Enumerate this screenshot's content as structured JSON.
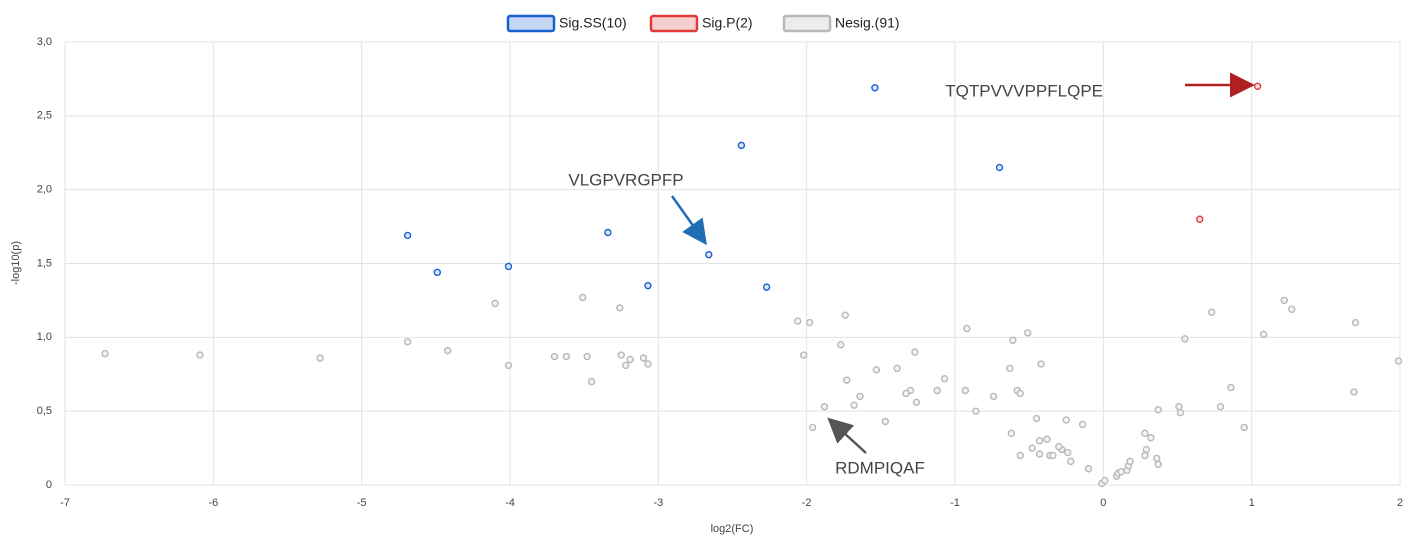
{
  "chart_data": {
    "type": "scatter",
    "x_label": "log2(FC)",
    "y_label": "-log10(p)",
    "xlim": [
      -7,
      2
    ],
    "xticks": [
      -7,
      -6,
      -5,
      -4,
      -3,
      -2,
      -1,
      0,
      1,
      2
    ],
    "ylim": [
      0,
      3
    ],
    "yticks": [
      0,
      {
        "value": 0.5,
        "label": "0,5"
      },
      {
        "value": 1,
        "label": "1,0"
      },
      {
        "value": 1.5,
        "label": "1,5"
      },
      {
        "value": 2,
        "label": "2,0"
      },
      {
        "value": 2.5,
        "label": "2,5"
      },
      {
        "value": 3,
        "label": "3,0"
      }
    ],
    "grid": true,
    "legend": "top",
    "series": [
      {
        "name": "Sig.SS(10)",
        "color": "#1a5fd0",
        "x": [
          -4.69,
          -4.49,
          -4.01,
          -3.34,
          -3.07,
          -2.66,
          -2.44,
          -2.27,
          -1.54,
          -0.7
        ],
        "y": [
          1.69,
          1.44,
          1.48,
          1.71,
          1.35,
          1.56,
          2.3,
          1.34,
          2.69,
          2.15
        ]
      },
      {
        "name": "Sig.P(2)",
        "color": "#e03a3a",
        "x": [
          1.04,
          0.65
        ],
        "y": [
          2.7,
          1.8
        ]
      },
      {
        "name": "Nesig.(91)",
        "color": "#b8b8b8",
        "x": [
          -6.73,
          -6.09,
          -5.28,
          -4.69,
          -4.42,
          -4.1,
          -4.01,
          -3.7,
          -3.62,
          -3.51,
          -3.48,
          -3.45,
          -3.26,
          -3.25,
          -3.22,
          -3.19,
          -3.1,
          -3.07,
          -2.06,
          -2.02,
          -1.98,
          -1.96,
          -1.88,
          -1.77,
          -1.74,
          -1.73,
          -1.68,
          -1.64,
          -1.53,
          -1.47,
          -1.39,
          -1.3,
          -1.27,
          -1.26,
          -1.12,
          -1.07,
          -0.93,
          -0.92,
          -0.86,
          -0.74,
          -0.63,
          -0.62,
          -0.61,
          -0.58,
          -0.56,
          -0.51,
          -0.48,
          -0.45,
          -0.43,
          -0.43,
          -0.42,
          -0.38,
          -0.36,
          -0.34,
          -0.28,
          -0.25,
          -0.24,
          -0.22,
          -0.14,
          -0.1,
          -0.01,
          0.01,
          0.09,
          0.1,
          0.16,
          0.17,
          0.18,
          0.28,
          0.28,
          0.29,
          0.32,
          0.36,
          0.37,
          0.37,
          0.51,
          0.52,
          0.55,
          0.73,
          0.79,
          0.86,
          0.95,
          1.08,
          1.22,
          1.27,
          1.69,
          1.7,
          1.99,
          -0.3,
          0.12,
          -1.33,
          -0.56
        ],
        "y": [
          0.89,
          0.88,
          0.86,
          0.97,
          0.91,
          1.23,
          0.81,
          0.87,
          0.87,
          1.27,
          0.87,
          0.7,
          1.2,
          0.88,
          0.81,
          0.85,
          0.86,
          0.82,
          1.11,
          0.88,
          1.1,
          0.39,
          0.53,
          0.95,
          1.15,
          0.71,
          0.54,
          0.6,
          0.78,
          0.43,
          0.79,
          0.64,
          0.9,
          0.56,
          0.64,
          0.72,
          0.64,
          1.06,
          0.5,
          0.6,
          0.79,
          0.35,
          0.98,
          0.64,
          0.2,
          1.03,
          0.25,
          0.45,
          0.3,
          0.21,
          0.82,
          0.31,
          0.2,
          0.2,
          0.24,
          0.44,
          0.22,
          0.16,
          0.41,
          0.11,
          0.01,
          0.03,
          0.06,
          0.08,
          0.1,
          0.13,
          0.16,
          0.2,
          0.35,
          0.24,
          0.32,
          0.18,
          0.14,
          0.51,
          0.53,
          0.49,
          0.99,
          1.17,
          0.53,
          0.66,
          0.39,
          1.02,
          1.25,
          1.19,
          0.63,
          1.1,
          0.84,
          0.26,
          0.09,
          0.62,
          0.62
        ]
      }
    ],
    "annotations": [
      {
        "text": "TQTPVVVPPFLQPE",
        "color": "#b02020"
      },
      {
        "text": "VLGPVRGPFP",
        "color": "#1f6db5"
      },
      {
        "text": "RDMPIQAF",
        "color": "#555555"
      }
    ]
  }
}
